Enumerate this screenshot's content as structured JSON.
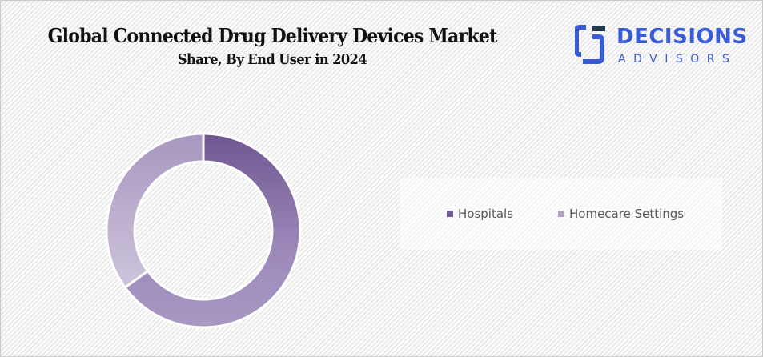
{
  "header": {
    "title": "Global Connected Drug Delivery  Devices Market",
    "subtitle": "Share, By End User in 2024"
  },
  "logo": {
    "word": "DECISIONS",
    "sub": "ADVISORS",
    "icon": "decisions-advisors-logo-icon",
    "brand_color": "#3a5bd8",
    "accent_color": "#1f3a4a"
  },
  "chart_data": {
    "type": "pie",
    "variant": "donut",
    "title": "Global Connected Drug Delivery Devices Market Share, By End User in 2024",
    "categories": [
      "Hospitals",
      "Homecare Settings"
    ],
    "values": [
      65,
      35
    ],
    "unit": "%",
    "colors": [
      "#745b93",
      "#b1a3c6"
    ],
    "legend_position": "right",
    "data_labels": false
  }
}
